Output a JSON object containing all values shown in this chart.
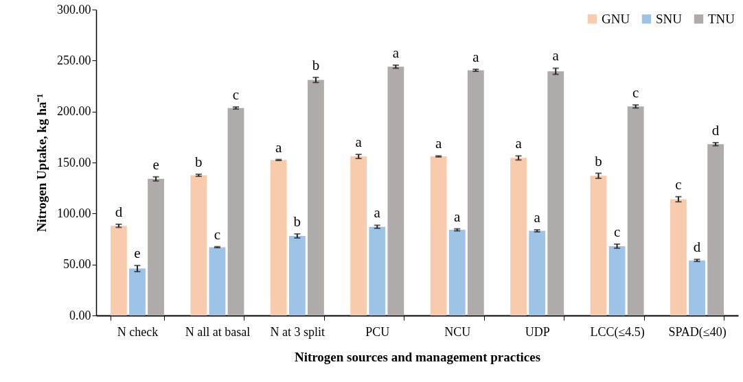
{
  "chart_data": {
    "type": "bar",
    "xlabel": "Nitrogen sources and management practices",
    "ylabel": "Nitrogen Uptake, kg ha⁻¹",
    "categories": [
      "N check",
      "N all at basal",
      "N at 3 split",
      "PCU",
      "NCU",
      "UDP",
      "LCC(≤4.5)",
      "SPAD(≤40)"
    ],
    "series": [
      {
        "name": "GNU",
        "color": "#f8cbad",
        "values": [
          88,
          137.5,
          152.5,
          156,
          156,
          154.5,
          137,
          114
        ],
        "errors": [
          1.5,
          1,
          0.5,
          2,
          0.5,
          2,
          2.5,
          2.5
        ],
        "value_labels": [
          "d",
          "b",
          "a",
          "a",
          "a",
          "a",
          "b",
          "c"
        ]
      },
      {
        "name": "SNU",
        "color": "#9dc3e6",
        "values": [
          46,
          67,
          78,
          87,
          84,
          83,
          68,
          54
        ],
        "errors": [
          3,
          0.5,
          2,
          1.5,
          1,
          1,
          2,
          1
        ],
        "value_labels": [
          "e",
          "c",
          "b",
          "a",
          "a",
          "a",
          "c",
          "d"
        ]
      },
      {
        "name": "TNU",
        "color": "#afabab",
        "values": [
          134,
          203.5,
          231,
          244,
          240.5,
          239.5,
          205,
          168
        ],
        "errors": [
          2,
          1,
          2.5,
          1.5,
          1,
          3,
          1.5,
          1.5
        ],
        "value_labels": [
          "e",
          "c",
          "b",
          "a",
          "a",
          "a",
          "c",
          "d"
        ]
      }
    ],
    "ylim": [
      0,
      300
    ],
    "yticks": [
      {
        "value": 0,
        "label": "0.00"
      },
      {
        "value": 50,
        "label": "50.00"
      },
      {
        "value": 100,
        "label": "100.00"
      },
      {
        "value": 150,
        "label": "150.00"
      },
      {
        "value": 200,
        "label": "200.00"
      },
      {
        "value": 250,
        "label": "250.00"
      },
      {
        "value": 300,
        "label": "300.00"
      }
    ],
    "grid": false,
    "legend": "top right"
  }
}
